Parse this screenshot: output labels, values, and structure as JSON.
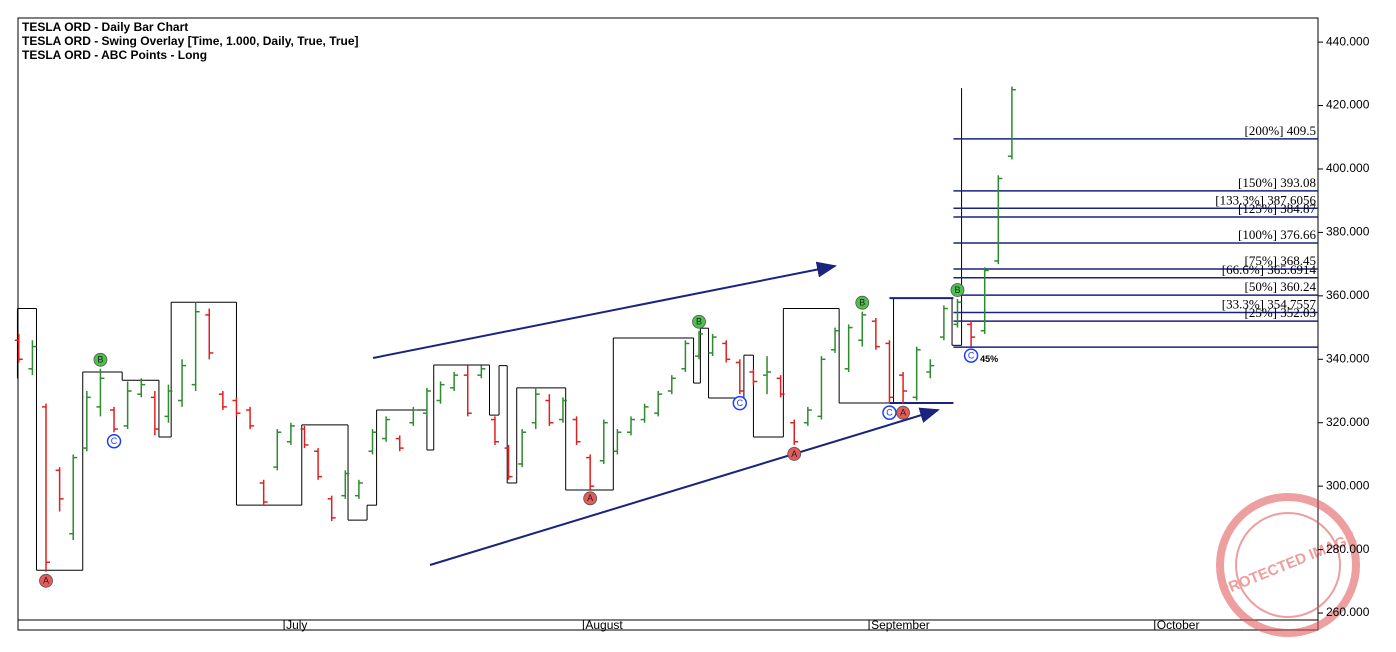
{
  "chart_data": {
    "type": "ohlc",
    "title_lines": [
      "TESLA ORD - Daily Bar Chart",
      "TESLA ORD - Swing Overlay [Time, 1.000, Daily, True, True]",
      "TESLA ORD - ABC Points - Long"
    ],
    "categories": [
      null,
      null,
      null,
      null,
      null,
      null,
      null,
      null,
      null,
      null,
      null,
      null,
      null,
      null,
      null,
      null,
      null,
      null,
      null,
      null,
      "July",
      null,
      null,
      null,
      null,
      null,
      null,
      null,
      null,
      null,
      null,
      null,
      null,
      null,
      null,
      null,
      null,
      null,
      null,
      null,
      null,
      null,
      "August",
      null,
      null,
      null,
      null,
      null,
      null,
      null,
      null,
      null,
      null,
      null,
      null,
      null,
      null,
      null,
      null,
      null,
      null,
      null,
      null,
      "September",
      null,
      null,
      null,
      null,
      null,
      null,
      null,
      null,
      null,
      null,
      null,
      null,
      null,
      null,
      null,
      null,
      null,
      null,
      null,
      null,
      "October",
      null,
      null,
      null,
      null,
      null,
      null,
      null,
      null,
      null,
      null,
      null
    ],
    "open": [
      346,
      337,
      325,
      305,
      285,
      312,
      325,
      324,
      319,
      329,
      328,
      322,
      327,
      332,
      354,
      329,
      327,
      324,
      301,
      306,
      314,
      318,
      311,
      296,
      297,
      297,
      311,
      315,
      315,
      320,
      323,
      327,
      331,
      335,
      335,
      321,
      312,
      307,
      320,
      327,
      321,
      321,
      309,
      308,
      311,
      317,
      321,
      323,
      330,
      337,
      341,
      342,
      345,
      339,
      336,
      335,
      334,
      320,
      320,
      322,
      343,
      337,
      346,
      352,
      345,
      335,
      328,
      336,
      347,
      351,
      351,
      349,
      371,
      404,
      null,
      null,
      null,
      null,
      null,
      null,
      null,
      null,
      null,
      null,
      null,
      null,
      null,
      null,
      null,
      null,
      null,
      null,
      null,
      null,
      null,
      null
    ],
    "high": [
      348,
      346,
      326,
      306,
      310,
      330,
      337,
      325,
      333,
      334,
      330,
      332,
      340,
      358,
      356,
      330,
      328,
      325,
      302,
      318,
      320,
      319,
      312,
      297,
      305,
      302,
      318,
      322,
      316,
      325,
      331,
      333,
      336,
      338,
      338,
      322,
      313,
      318,
      331,
      329,
      328,
      322,
      310,
      321,
      318,
      322,
      326,
      330,
      335,
      346,
      349,
      348,
      346,
      340,
      337,
      341,
      335,
      321,
      325,
      341,
      350,
      351,
      355,
      353,
      346,
      336,
      344,
      340,
      357,
      359,
      352,
      369,
      398,
      426,
      null,
      null,
      null,
      null,
      null,
      null,
      null,
      null,
      null,
      null,
      null,
      null,
      null,
      null,
      null,
      null,
      null,
      null,
      null,
      null,
      null,
      null
    ],
    "low": [
      339,
      335,
      273,
      292,
      283,
      311,
      322,
      317,
      318,
      328,
      316,
      320,
      325,
      330,
      340,
      324,
      322,
      318,
      294,
      305,
      313,
      312,
      302,
      289,
      296,
      296,
      310,
      314,
      311,
      319,
      322,
      326,
      330,
      322,
      334,
      313,
      302,
      306,
      318,
      319,
      320,
      313,
      299,
      307,
      310,
      316,
      320,
      322,
      329,
      336,
      340,
      341,
      339,
      329,
      332,
      329,
      328,
      313,
      319,
      321,
      342,
      336,
      344,
      343,
      326,
      326,
      327,
      334,
      346,
      350,
      344,
      348,
      370,
      403,
      null,
      null,
      null,
      null,
      null,
      null,
      null,
      null,
      null,
      null,
      null,
      null,
      null,
      null,
      null,
      null,
      null,
      null,
      null,
      null,
      null,
      null
    ],
    "close": [
      340,
      344,
      276,
      296,
      309,
      328,
      334,
      318,
      330,
      332,
      318,
      330,
      338,
      355,
      342,
      325,
      323,
      319,
      295,
      317,
      319,
      313,
      303,
      290,
      304,
      301,
      317,
      321,
      312,
      324,
      330,
      332,
      335,
      323,
      337,
      314,
      303,
      317,
      329,
      320,
      327,
      314,
      300,
      320,
      317,
      321,
      325,
      329,
      334,
      345,
      348,
      347,
      340,
      330,
      333,
      336,
      329,
      314,
      324,
      340,
      349,
      350,
      354,
      344,
      328,
      330,
      343,
      338,
      356,
      358,
      347,
      368,
      397,
      425,
      null,
      null,
      null,
      null,
      null,
      null,
      null,
      null,
      null,
      null,
      null,
      null,
      null,
      null,
      null,
      null,
      null,
      null,
      null,
      null,
      null,
      null
    ],
    "up_color": "#2e8b2e",
    "down_color": "#e02020",
    "flat_color": "#000000",
    "swing_x": [
      0.4,
      0.4,
      1.8,
      5.2,
      8.1,
      10.8,
      11.7,
      16.5,
      21.3,
      24.7,
      26.1,
      26.8,
      30.5,
      31,
      35.1,
      35.8,
      36.4,
      37.1,
      40.7,
      44.2,
      50.1,
      50.6,
      51.2,
      53.8,
      54.5,
      56.7,
      60.8,
      64.8,
      69.1,
      69.8
    ],
    "swing_values": [
      334,
      356,
      273.5,
      336,
      333.4,
      315.5,
      358,
      294,
      319.3,
      289.3,
      294,
      324,
      311.4,
      338.2,
      322.4,
      338,
      301,
      331,
      298.8,
      346.7,
      332.5,
      349.8,
      327.8,
      341.3,
      315.5,
      356,
      326.2,
      359.3,
      344.4,
      425.5
    ],
    "abc_points": [
      {
        "label": "A",
        "x": 2,
        "value": 273
      },
      {
        "label": "B",
        "x": 6,
        "value": 337
      },
      {
        "label": "C",
        "x": 7,
        "value": 317
      },
      {
        "label": "A",
        "x": 42,
        "value": 299
      },
      {
        "label": "B",
        "x": 50,
        "value": 349
      },
      {
        "label": "C",
        "x": 53,
        "value": 329
      },
      {
        "label": "A",
        "x": 57,
        "value": 313
      },
      {
        "label": "B",
        "x": 62,
        "value": 355
      },
      {
        "label": "C",
        "x": 64,
        "value": 326
      },
      {
        "label": "A",
        "x": 65,
        "value": 326
      },
      {
        "label": "B",
        "x": 69,
        "value": 359
      },
      {
        "label": "C",
        "x": 70,
        "value": 344
      }
    ],
    "c_note": "45%",
    "ab_levels": [
      359.3,
      326.2
    ],
    "levels": [
      {
        "label": "[200%] 409.5",
        "value": 409.5
      },
      {
        "label": "[150%] 393.08",
        "value": 393.08
      },
      {
        "label": "[133.3%] 387.6056",
        "value": 387.6056
      },
      {
        "label": "[125%] 384.87",
        "value": 384.87
      },
      {
        "label": "[100%] 376.66",
        "value": 376.66
      },
      {
        "label": "[75%] 368.45",
        "value": 368.45
      },
      {
        "label": "[66.6%] 365.6914",
        "value": 365.6914
      },
      {
        "label": "[50%] 360.24",
        "value": 360.24
      },
      {
        "label": "[33.3%] 354.7557",
        "value": 354.7557
      },
      {
        "label": "[25%] 352.03",
        "value": 352.03
      },
      {
        "value": 343.82
      }
    ],
    "level_color": "#1a237e",
    "ylim": [
      257.8,
      447.6
    ],
    "yticks": [
      {
        "value": 260,
        "label": "260.000"
      },
      {
        "value": 280,
        "label": "280.000"
      },
      {
        "value": 300,
        "label": "300.000"
      },
      {
        "value": 320,
        "label": "320.000"
      },
      {
        "value": 340,
        "label": "340.000"
      },
      {
        "value": 360,
        "label": "360.000"
      },
      {
        "value": 380,
        "label": "380.000"
      },
      {
        "value": 400,
        "label": "400.000"
      },
      {
        "value": 420,
        "label": "420.000"
      },
      {
        "value": 440,
        "label": "440.000"
      }
    ],
    "watermark": "PROTECTED IMAGE"
  }
}
